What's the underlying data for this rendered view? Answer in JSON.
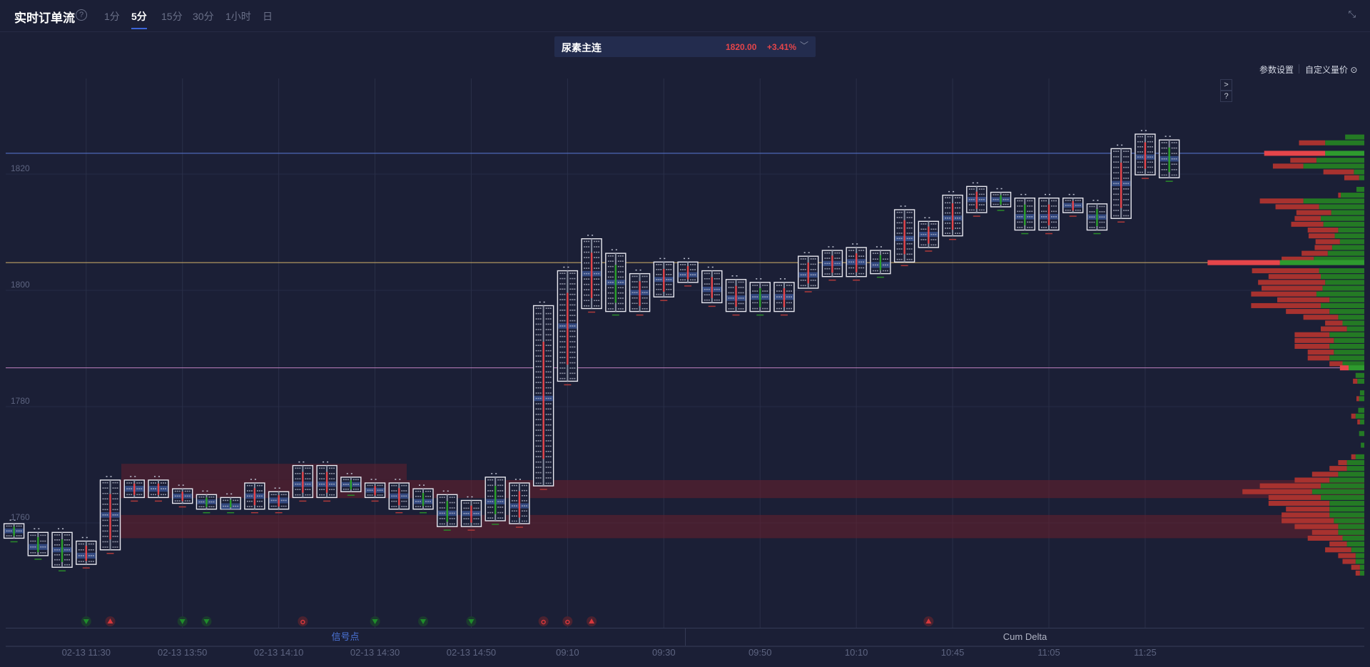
{
  "header": {
    "title": "实时订单流",
    "help_icon": "question-circle-icon",
    "tabs": [
      "1分",
      "5分",
      "15分",
      "30分",
      "1小时",
      "日"
    ],
    "active_tab": "5分",
    "collapse_icon": "collapse-arrows-icon"
  },
  "instrument": {
    "name": "尿素主连",
    "price": "1820.00",
    "change": "+3.41%",
    "dropdown_icon": "chevron-down-icon"
  },
  "toolbar": {
    "params": "参数设置",
    "custom_price": "自定义量价",
    "settings_icon": "gear-icon",
    "expand_btn": ">",
    "help_btn": "?"
  },
  "colors": {
    "bg": "#1b1f36",
    "up": "#2a8c2a",
    "down": "#e5454a",
    "highlight": "#4a64b0",
    "line_blue": "#5a7ad8",
    "line_yellow": "#d4b46a",
    "line_pink": "#c080c0"
  },
  "bottom_tabs": {
    "signal": "信号点",
    "cum_delta": "Cum Delta",
    "active": "信号点"
  },
  "chart_data": {
    "type": "footprint",
    "y_ticks": [
      1820,
      1800,
      1780,
      1760
    ],
    "x_ticks": [
      "02-13 11:30",
      "02-13 13:50",
      "02-13 14:10",
      "02-13 14:30",
      "02-13 14:50",
      "09:10",
      "09:30",
      "09:50",
      "10:10",
      "10:45",
      "11:05",
      "11:25"
    ],
    "reference_lines": [
      {
        "price": 1823.2,
        "color": "blue"
      },
      {
        "price": 1804.4,
        "color": "yellow"
      },
      {
        "price": 1786.3,
        "color": "pink"
      }
    ],
    "zones": [
      {
        "from": 1763.9,
        "to": 1767
      },
      {
        "from": 1757,
        "to": 1761
      }
    ],
    "candles": [
      {
        "high": 1759.5,
        "low": 1757,
        "dir": "up"
      },
      {
        "high": 1758,
        "low": 1754,
        "dir": "up"
      },
      {
        "high": 1758,
        "low": 1752,
        "dir": "up"
      },
      {
        "high": 1756.5,
        "low": 1752.5,
        "dir": "down"
      },
      {
        "high": 1767,
        "low": 1755,
        "dir": "down"
      },
      {
        "high": 1767,
        "low": 1764,
        "dir": "down"
      },
      {
        "high": 1767,
        "low": 1764,
        "dir": "down"
      },
      {
        "high": 1765.5,
        "low": 1763,
        "dir": "down"
      },
      {
        "high": 1764.5,
        "low": 1762,
        "dir": "up"
      },
      {
        "high": 1764,
        "low": 1762,
        "dir": "up"
      },
      {
        "high": 1766.5,
        "low": 1762,
        "dir": "down"
      },
      {
        "high": 1765,
        "low": 1762,
        "dir": "down"
      },
      {
        "high": 1769.5,
        "low": 1764,
        "dir": "down"
      },
      {
        "high": 1769.5,
        "low": 1764,
        "dir": "down"
      },
      {
        "high": 1767.5,
        "low": 1765,
        "dir": "up"
      },
      {
        "high": 1766.5,
        "low": 1764,
        "dir": "down"
      },
      {
        "high": 1766.5,
        "low": 1762,
        "dir": "down"
      },
      {
        "high": 1765.5,
        "low": 1762,
        "dir": "up"
      },
      {
        "high": 1764.5,
        "low": 1759,
        "dir": "up"
      },
      {
        "high": 1763.5,
        "low": 1759,
        "dir": "down"
      },
      {
        "high": 1767.5,
        "low": 1760,
        "dir": "up"
      },
      {
        "high": 1766.5,
        "low": 1759.5,
        "dir": "down"
      },
      {
        "high": 1797,
        "low": 1766,
        "dir": "down"
      },
      {
        "high": 1803,
        "low": 1784,
        "dir": "down"
      },
      {
        "high": 1808.5,
        "low": 1796.5,
        "dir": "down"
      },
      {
        "high": 1806,
        "low": 1796,
        "dir": "up"
      },
      {
        "high": 1802.5,
        "low": 1796,
        "dir": "down"
      },
      {
        "high": 1804.5,
        "low": 1798.5,
        "dir": "down"
      },
      {
        "high": 1804.5,
        "low": 1801,
        "dir": "down"
      },
      {
        "high": 1803,
        "low": 1797.5,
        "dir": "down"
      },
      {
        "high": 1801.5,
        "low": 1796,
        "dir": "down"
      },
      {
        "high": 1801,
        "low": 1796,
        "dir": "up"
      },
      {
        "high": 1801,
        "low": 1796,
        "dir": "down"
      },
      {
        "high": 1805.5,
        "low": 1800,
        "dir": "down"
      },
      {
        "high": 1806.5,
        "low": 1802,
        "dir": "down"
      },
      {
        "high": 1807,
        "low": 1802,
        "dir": "down"
      },
      {
        "high": 1806.5,
        "low": 1802.5,
        "dir": "up"
      },
      {
        "high": 1813.5,
        "low": 1804.5,
        "dir": "down"
      },
      {
        "high": 1811.5,
        "low": 1807,
        "dir": "down"
      },
      {
        "high": 1816,
        "low": 1809,
        "dir": "down"
      },
      {
        "high": 1817.5,
        "low": 1813,
        "dir": "down"
      },
      {
        "high": 1816.5,
        "low": 1814,
        "dir": "up"
      },
      {
        "high": 1815.5,
        "low": 1810,
        "dir": "up"
      },
      {
        "high": 1815.5,
        "low": 1810,
        "dir": "down"
      },
      {
        "high": 1815.5,
        "low": 1813,
        "dir": "down"
      },
      {
        "high": 1814.5,
        "low": 1810,
        "dir": "up"
      },
      {
        "high": 1824,
        "low": 1812,
        "dir": "down"
      },
      {
        "high": 1826.5,
        "low": 1819.5,
        "dir": "down"
      },
      {
        "high": 1825.5,
        "low": 1819,
        "dir": "up"
      }
    ],
    "signals": [
      {
        "candle": 3,
        "type": "down",
        "color": "green"
      },
      {
        "candle": 4,
        "type": "up",
        "color": "red"
      },
      {
        "candle": 7,
        "type": "down",
        "color": "green"
      },
      {
        "candle": 8,
        "type": "down",
        "color": "green"
      },
      {
        "candle": 12,
        "type": "mark",
        "color": "red"
      },
      {
        "candle": 15,
        "type": "down",
        "color": "green"
      },
      {
        "candle": 17,
        "type": "down",
        "color": "green"
      },
      {
        "candle": 19,
        "type": "down",
        "color": "green"
      },
      {
        "candle": 22,
        "type": "mark",
        "color": "red"
      },
      {
        "candle": 23,
        "type": "mark",
        "color": "red"
      },
      {
        "candle": 24,
        "type": "up",
        "color": "red"
      },
      {
        "candle": 38,
        "type": "up",
        "color": "red"
      }
    ],
    "volume_profile": [
      [
        1826,
        0,
        22
      ],
      [
        1825,
        30,
        45
      ],
      [
        1823.2,
        70,
        45
      ],
      [
        1822,
        30,
        55
      ],
      [
        1821,
        35,
        70
      ],
      [
        1820,
        35,
        12
      ],
      [
        1819,
        17,
        6
      ],
      [
        1817,
        0,
        9
      ],
      [
        1816,
        3,
        27
      ],
      [
        1815,
        50,
        70
      ],
      [
        1814,
        50,
        52
      ],
      [
        1813,
        40,
        38
      ],
      [
        1812,
        30,
        50
      ],
      [
        1811,
        37,
        47
      ],
      [
        1810,
        35,
        30
      ],
      [
        1809,
        30,
        34
      ],
      [
        1808,
        28,
        28
      ],
      [
        1807,
        20,
        37
      ],
      [
        1806,
        30,
        42
      ],
      [
        1805,
        37,
        58
      ],
      [
        1804.4,
        83,
        97
      ],
      [
        1803,
        77,
        52
      ],
      [
        1802,
        60,
        50
      ],
      [
        1801,
        77,
        45
      ],
      [
        1800,
        70,
        48
      ],
      [
        1799,
        75,
        55
      ],
      [
        1798,
        60,
        40
      ],
      [
        1797,
        80,
        50
      ],
      [
        1796,
        50,
        40
      ],
      [
        1795,
        40,
        30
      ],
      [
        1794,
        20,
        25
      ],
      [
        1793,
        30,
        20
      ],
      [
        1792,
        40,
        40
      ],
      [
        1791,
        45,
        35
      ],
      [
        1790,
        40,
        40
      ],
      [
        1789,
        30,
        35
      ],
      [
        1788,
        25,
        40
      ],
      [
        1787,
        15,
        25
      ],
      [
        1786.3,
        10,
        18
      ],
      [
        1785,
        0,
        10
      ],
      [
        1784,
        5,
        8
      ],
      [
        1782,
        0,
        5
      ],
      [
        1781,
        3,
        6
      ],
      [
        1779,
        0,
        7
      ],
      [
        1778,
        5,
        10
      ],
      [
        1777,
        3,
        5
      ],
      [
        1775,
        0,
        6
      ],
      [
        1773,
        0,
        4
      ],
      [
        1771,
        5,
        10
      ],
      [
        1770,
        10,
        20
      ],
      [
        1769,
        20,
        20
      ],
      [
        1768,
        30,
        30
      ],
      [
        1767,
        40,
        40
      ],
      [
        1766,
        70,
        50
      ],
      [
        1765,
        80,
        60
      ],
      [
        1764,
        60,
        50
      ],
      [
        1763,
        70,
        40
      ],
      [
        1762,
        50,
        40
      ],
      [
        1761,
        55,
        40
      ],
      [
        1760,
        60,
        35
      ],
      [
        1759,
        50,
        30
      ],
      [
        1758,
        30,
        30
      ],
      [
        1757,
        40,
        25
      ],
      [
        1756,
        20,
        20
      ],
      [
        1755,
        30,
        15
      ],
      [
        1754,
        20,
        10
      ],
      [
        1753,
        15,
        10
      ],
      [
        1752,
        10,
        5
      ],
      [
        1751,
        5,
        5
      ]
    ]
  }
}
